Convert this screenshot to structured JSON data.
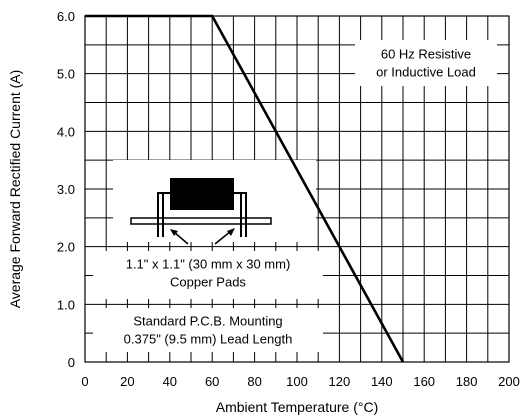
{
  "chart_data": {
    "type": "line",
    "xlabel": "Ambient Temperature (°C)",
    "ylabel": "Average Forward Rectified Current (A)",
    "xlim": [
      0,
      200
    ],
    "ylim": [
      0,
      6
    ],
    "grid": true,
    "x_ticks": [
      0,
      20,
      40,
      60,
      80,
      100,
      120,
      140,
      160,
      180,
      200
    ],
    "x_tick_labels": [
      "0",
      "20",
      "40",
      "60",
      "80",
      "100",
      "120",
      "140",
      "160",
      "180",
      "200"
    ],
    "y_ticks": [
      0,
      1,
      2,
      3,
      4,
      5,
      6
    ],
    "y_tick_labels": [
      "0",
      "1.0",
      "2.0",
      "3.0",
      "4.0",
      "5.0",
      "6.0"
    ],
    "minor_x_step": 10,
    "minor_y_step": 0.5,
    "series": [
      {
        "x": [
          0,
          60,
          150
        ],
        "y": [
          6.0,
          6.0,
          0.0
        ]
      }
    ],
    "annotations": {
      "load": [
        "60 Hz Resistive",
        "or Inductive Load"
      ],
      "pads": [
        "1.1\" x 1.1\" (30 mm x 30 mm)",
        "Copper Pads"
      ],
      "mounting": [
        "Standard P.C.B. Mounting",
        "0.375\" (9.5 mm) Lead Length"
      ]
    }
  }
}
